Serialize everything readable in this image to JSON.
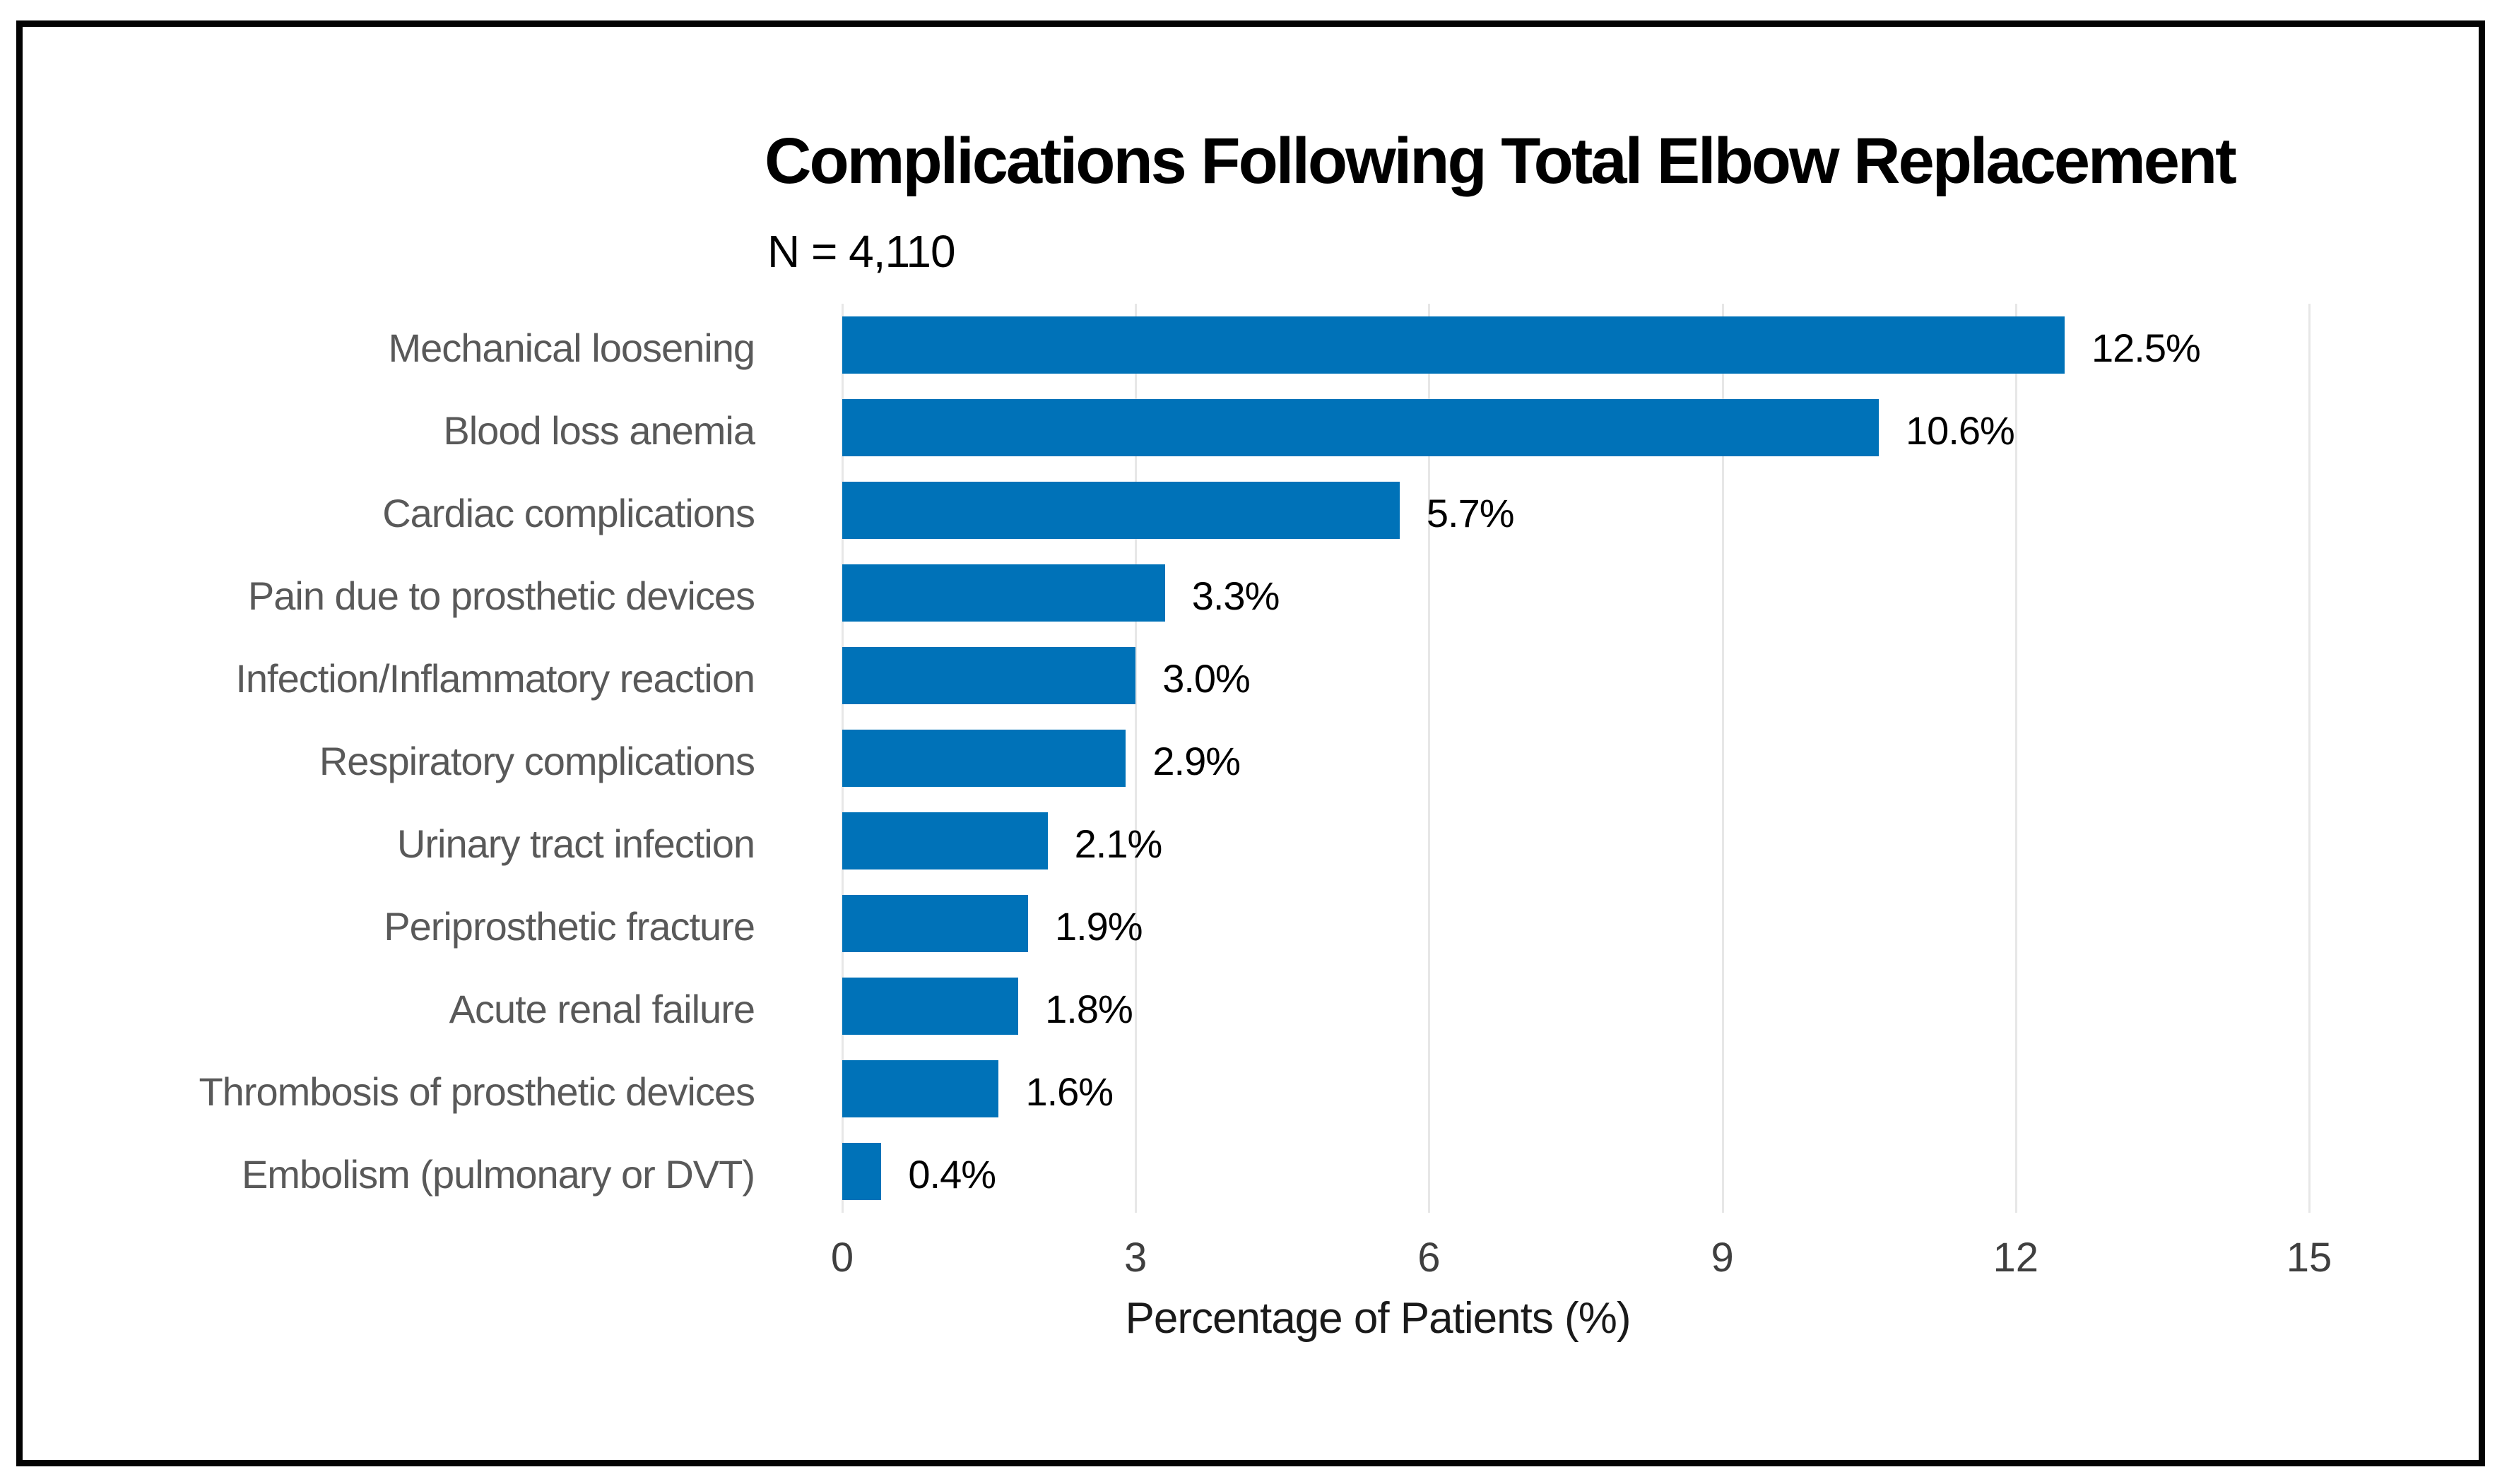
{
  "chart_data": {
    "type": "bar",
    "orientation": "horizontal",
    "title": "Complications Following Total Elbow Replacement",
    "subtitle": "N = 4,110",
    "categories": [
      "Mechanical loosening",
      "Blood loss anemia",
      "Cardiac complications",
      "Pain due to prosthetic devices",
      "Infection/Inflammatory reaction",
      "Respiratory complications",
      "Urinary tract infection",
      "Periprosthetic fracture",
      "Acute renal failure",
      "Thrombosis of prosthetic devices",
      "Embolism (pulmonary or DVT)"
    ],
    "values": [
      12.5,
      10.6,
      5.7,
      3.3,
      3.0,
      2.9,
      2.1,
      1.9,
      1.8,
      1.6,
      0.4
    ],
    "value_labels": [
      "12.5%",
      "10.6%",
      "5.7%",
      "3.3%",
      "3.0%",
      "2.9%",
      "2.1%",
      "1.9%",
      "1.8%",
      "1.6%",
      "0.4%"
    ],
    "xlabel": "Percentage of Patients (%)",
    "xlim": [
      0,
      15
    ],
    "xticks": [
      0,
      3,
      6,
      9,
      12,
      15
    ],
    "grid": "vertical",
    "legend": "none",
    "bar_color": "#0072b8",
    "grid_color": "#e7e7e7",
    "category_label_color": "#595959",
    "value_label_color": "#000000",
    "tick_label_color": "#3f3f3f",
    "title_color": "#000000"
  }
}
